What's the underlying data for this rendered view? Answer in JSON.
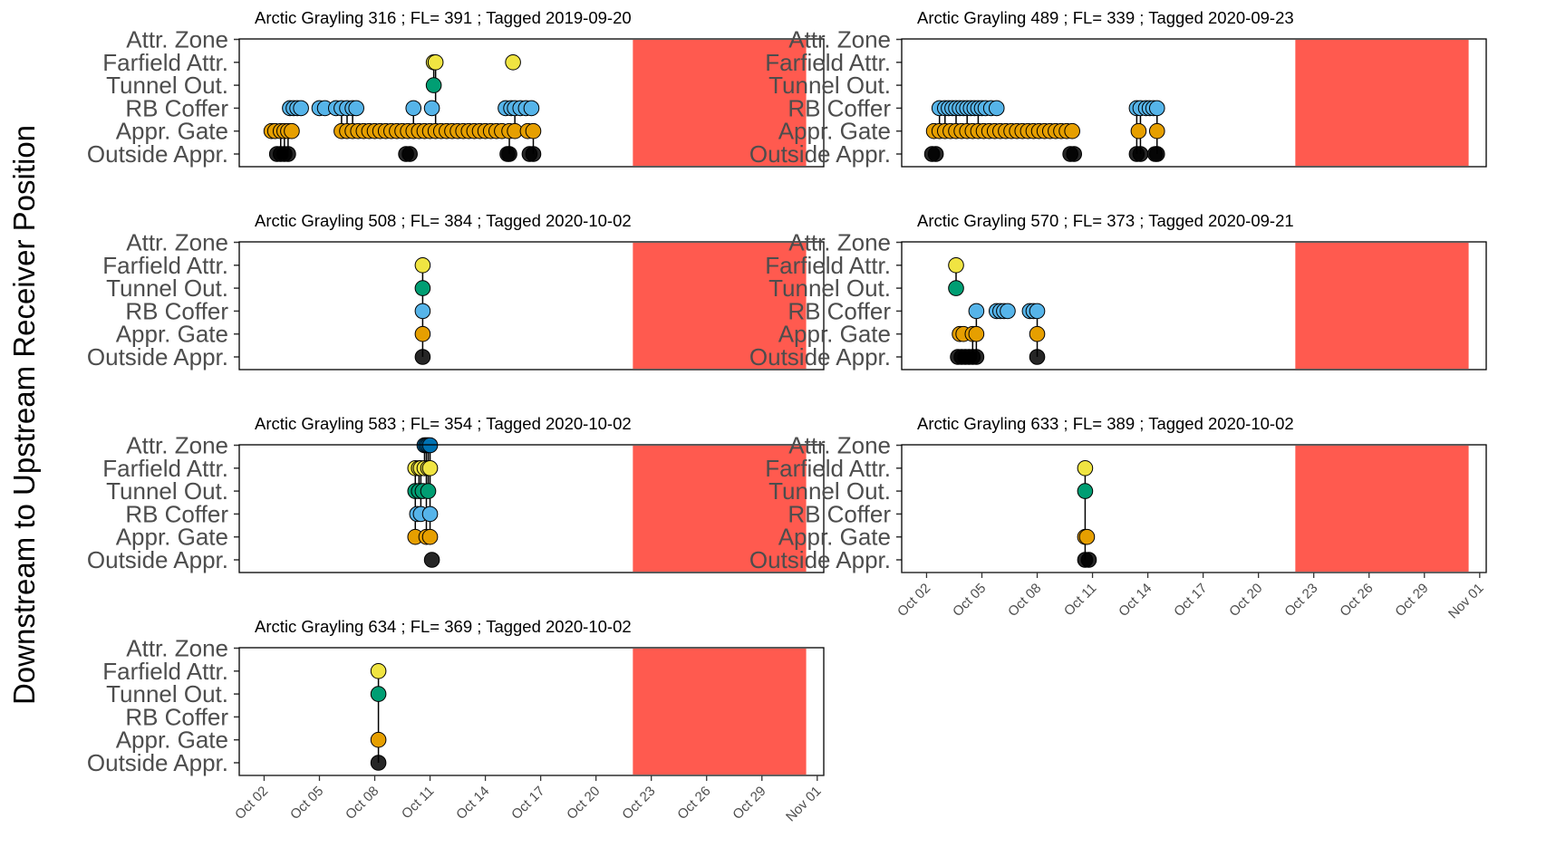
{
  "y_axis_title": "Downstream to Upstream Receiver Position",
  "positions": [
    "Outside Appr.",
    "Appr. Gate",
    "RB Coffer",
    "Tunnel Out.",
    "Farfield Attr.",
    "Attr. Zone"
  ],
  "position_colors": {
    "Outside Appr.": "#000000",
    "Appr. Gate": "#E69F00",
    "RB Coffer": "#56B4E9",
    "Tunnel Out.": "#009E73",
    "Farfield Attr.": "#F0E442",
    "Attr. Zone": "#0072B2"
  },
  "shade": {
    "start_day": 21.0,
    "end_day": 30.4,
    "color": "#FF5A4F"
  },
  "x_ticks": [
    "Oct 02",
    "Oct 05",
    "Oct 08",
    "Oct 11",
    "Oct 14",
    "Oct 17",
    "Oct 20",
    "Oct 23",
    "Oct 26",
    "Oct 29",
    "Nov 01"
  ],
  "chart_data": [
    {
      "type": "scatter",
      "title": "Arctic Grayling 316 ; FL= 391 ; Tagged 2019-09-20",
      "series": [
        {
          "name": "Outside Appr.",
          "x": [
            1.7,
            1.9,
            2.1,
            2.3,
            8.7,
            8.9,
            14.2,
            14.3,
            15.4,
            15.6
          ],
          "y": [
            0,
            0,
            0,
            0,
            0,
            0,
            0,
            0,
            0,
            0
          ]
        },
        {
          "name": "Appr. Gate",
          "x": [
            1.4,
            1.6,
            1.9,
            2.1,
            2.3,
            2.5,
            5.2,
            5.5,
            5.8,
            6.1,
            6.4,
            6.7,
            7.0,
            7.3,
            7.6,
            7.9,
            8.2,
            8.5,
            8.8,
            9.1,
            9.4,
            9.7,
            10.0,
            10.3,
            10.6,
            10.9,
            11.2,
            11.5,
            11.8,
            12.1,
            12.4,
            12.7,
            13.0,
            13.3,
            13.6,
            13.9,
            14.3,
            14.6,
            15.3,
            15.6
          ],
          "y": [
            1,
            1,
            1,
            1,
            1,
            1,
            1,
            1,
            1,
            1,
            1,
            1,
            1,
            1,
            1,
            1,
            1,
            1,
            1,
            1,
            1,
            1,
            1,
            1,
            1,
            1,
            1,
            1,
            1,
            1,
            1,
            1,
            1,
            1,
            1,
            1,
            1,
            1,
            1,
            1
          ]
        },
        {
          "name": "RB Coffer",
          "x": [
            2.4,
            2.6,
            2.8,
            3.0,
            4.0,
            4.3,
            4.9,
            5.2,
            5.5,
            5.8,
            6.0,
            9.1,
            10.1,
            14.1,
            14.4,
            14.6,
            14.9,
            15.2,
            15.5
          ],
          "y": [
            2,
            2,
            2,
            2,
            2,
            2,
            2,
            2,
            2,
            2,
            2,
            2,
            2,
            2,
            2,
            2,
            2,
            2,
            2
          ]
        },
        {
          "name": "Tunnel Out.",
          "x": [
            10.2
          ],
          "y": [
            3
          ]
        },
        {
          "name": "Farfield Attr.",
          "x": [
            10.2,
            10.3,
            14.5
          ],
          "y": [
            4,
            4,
            4
          ]
        }
      ],
      "xlim": [
        "Oct 01",
        "Nov 01"
      ]
    },
    {
      "type": "scatter",
      "title": "Arctic Grayling 489 ; FL= 339 ; Tagged 2020-09-23",
      "series": [
        {
          "name": "Outside Appr.",
          "x": [
            1.3,
            1.5,
            8.8,
            9.0,
            12.4,
            12.6,
            13.4,
            13.5
          ],
          "y": [
            0,
            0,
            0,
            0,
            0,
            0,
            0,
            0
          ]
        },
        {
          "name": "Appr. Gate",
          "x": [
            1.4,
            1.7,
            2.0,
            2.3,
            2.6,
            2.9,
            3.2,
            3.5,
            3.8,
            4.1,
            4.4,
            4.7,
            5.0,
            5.3,
            5.6,
            5.9,
            6.2,
            6.5,
            6.8,
            7.1,
            7.4,
            7.7,
            8.0,
            8.3,
            8.6,
            8.9,
            12.5,
            13.5
          ],
          "y": [
            1,
            1,
            1,
            1,
            1,
            1,
            1,
            1,
            1,
            1,
            1,
            1,
            1,
            1,
            1,
            1,
            1,
            1,
            1,
            1,
            1,
            1,
            1,
            1,
            1,
            1,
            1,
            1
          ]
        },
        {
          "name": "RB Coffer",
          "x": [
            1.7,
            2.0,
            2.2,
            2.4,
            2.6,
            2.8,
            3.0,
            3.2,
            3.4,
            3.6,
            3.8,
            4.0,
            4.2,
            4.5,
            4.8,
            12.4,
            12.6,
            12.9,
            13.1,
            13.3,
            13.5
          ],
          "y": [
            2,
            2,
            2,
            2,
            2,
            2,
            2,
            2,
            2,
            2,
            2,
            2,
            2,
            2,
            2,
            2,
            2,
            2,
            2,
            2,
            2
          ]
        }
      ],
      "xlim": [
        "Oct 01",
        "Nov 01"
      ]
    },
    {
      "type": "scatter",
      "title": "Arctic Grayling 508 ; FL= 384 ; Tagged 2020-10-02",
      "series": [
        {
          "name": "Outside Appr.",
          "x": [
            9.6
          ],
          "y": [
            0
          ]
        },
        {
          "name": "Appr. Gate",
          "x": [
            9.6
          ],
          "y": [
            1
          ]
        },
        {
          "name": "RB Coffer",
          "x": [
            9.6
          ],
          "y": [
            2
          ]
        },
        {
          "name": "Tunnel Out.",
          "x": [
            9.6
          ],
          "y": [
            3
          ]
        },
        {
          "name": "Farfield Attr.",
          "x": [
            9.6
          ],
          "y": [
            4
          ]
        }
      ],
      "xlim": [
        "Oct 01",
        "Nov 01"
      ]
    },
    {
      "type": "scatter",
      "title": "Arctic Grayling 570 ; FL= 373 ; Tagged 2020-09-21",
      "series": [
        {
          "name": "Outside Appr.",
          "x": [
            2.7,
            2.9,
            3.1,
            3.3,
            3.5,
            3.7,
            7.0
          ],
          "y": [
            0,
            0,
            0,
            0,
            0,
            0,
            0
          ]
        },
        {
          "name": "Appr. Gate",
          "x": [
            2.8,
            3.0,
            3.5,
            3.7,
            7.0
          ],
          "y": [
            1,
            1,
            1,
            1,
            1
          ]
        },
        {
          "name": "RB Coffer",
          "x": [
            3.7,
            4.8,
            5.0,
            5.2,
            5.4,
            6.6,
            6.8,
            7.0
          ],
          "y": [
            2,
            2,
            2,
            2,
            2,
            2,
            2,
            2
          ]
        },
        {
          "name": "Tunnel Out.",
          "x": [
            2.6
          ],
          "y": [
            3
          ]
        },
        {
          "name": "Farfield Attr.",
          "x": [
            2.6
          ],
          "y": [
            4
          ]
        }
      ],
      "xlim": [
        "Oct 01",
        "Nov 01"
      ]
    },
    {
      "type": "scatter",
      "title": "Arctic Grayling 583 ; FL= 354 ; Tagged 2020-10-02",
      "series": [
        {
          "name": "Outside Appr.",
          "x": [
            10.1
          ],
          "y": [
            0
          ]
        },
        {
          "name": "Appr. Gate",
          "x": [
            9.2,
            9.8,
            10.0
          ],
          "y": [
            1,
            1,
            1
          ]
        },
        {
          "name": "RB Coffer",
          "x": [
            9.3,
            9.5,
            10.0
          ],
          "y": [
            2,
            2,
            2
          ]
        },
        {
          "name": "Tunnel Out.",
          "x": [
            9.2,
            9.4,
            9.6,
            9.9
          ],
          "y": [
            3,
            3,
            3,
            3
          ]
        },
        {
          "name": "Farfield Attr.",
          "x": [
            9.2,
            9.4,
            9.5,
            9.7,
            9.9,
            10.0
          ],
          "y": [
            4,
            4,
            4,
            4,
            4,
            4
          ]
        },
        {
          "name": "Attr. Zone",
          "x": [
            9.7,
            9.8,
            9.9,
            10.0
          ],
          "y": [
            5,
            5,
            5,
            5
          ]
        }
      ],
      "xlim": [
        "Oct 01",
        "Nov 01"
      ]
    },
    {
      "type": "scatter",
      "title": "Arctic Grayling 633 ; FL= 389 ; Tagged 2020-10-02",
      "series": [
        {
          "name": "Outside Appr.",
          "x": [
            9.6,
            9.8
          ],
          "y": [
            0,
            0
          ]
        },
        {
          "name": "Appr. Gate",
          "x": [
            9.6,
            9.7
          ],
          "y": [
            1,
            1
          ]
        },
        {
          "name": "Tunnel Out.",
          "x": [
            9.6
          ],
          "y": [
            3
          ]
        },
        {
          "name": "Farfield Attr.",
          "x": [
            9.6
          ],
          "y": [
            4
          ]
        }
      ],
      "xlim": [
        "Oct 01",
        "Nov 01"
      ]
    },
    {
      "type": "scatter",
      "title": "Arctic Grayling 634 ; FL= 369 ; Tagged 2020-10-02",
      "series": [
        {
          "name": "Outside Appr.",
          "x": [
            7.2
          ],
          "y": [
            0
          ]
        },
        {
          "name": "Appr. Gate",
          "x": [
            7.2
          ],
          "y": [
            1
          ]
        },
        {
          "name": "Tunnel Out.",
          "x": [
            7.2
          ],
          "y": [
            3
          ]
        },
        {
          "name": "Farfield Attr.",
          "x": [
            7.2
          ],
          "y": [
            4
          ]
        }
      ],
      "xlim": [
        "Oct 01",
        "Nov 01"
      ]
    }
  ]
}
